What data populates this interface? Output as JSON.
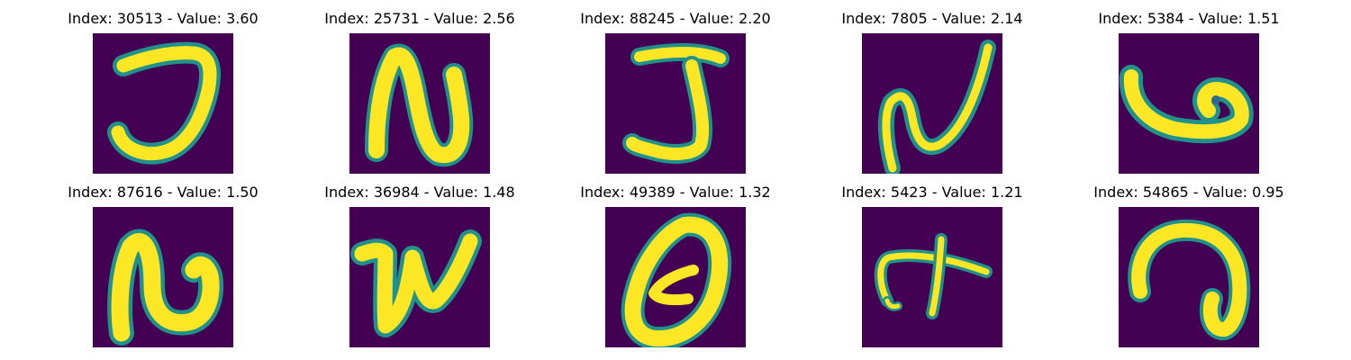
{
  "palette": {
    "background": "#440154",
    "foreground": "#fde725",
    "edge": "#21918c"
  },
  "panels": [
    {
      "title": "Index: 30513 - Value: 3.60"
    },
    {
      "title": "Index: 25731 - Value: 2.56"
    },
    {
      "title": "Index: 88245 - Value: 2.20"
    },
    {
      "title": "Index: 7805 - Value: 2.14"
    },
    {
      "title": "Index: 5384 - Value: 1.51"
    },
    {
      "title": "Index: 87616 - Value: 1.50"
    },
    {
      "title": "Index: 36984 - Value: 1.48"
    },
    {
      "title": "Index: 49389 - Value: 1.32"
    },
    {
      "title": "Index: 5423 - Value: 1.21"
    },
    {
      "title": "Index: 54865 - Value: 0.95"
    }
  ]
}
